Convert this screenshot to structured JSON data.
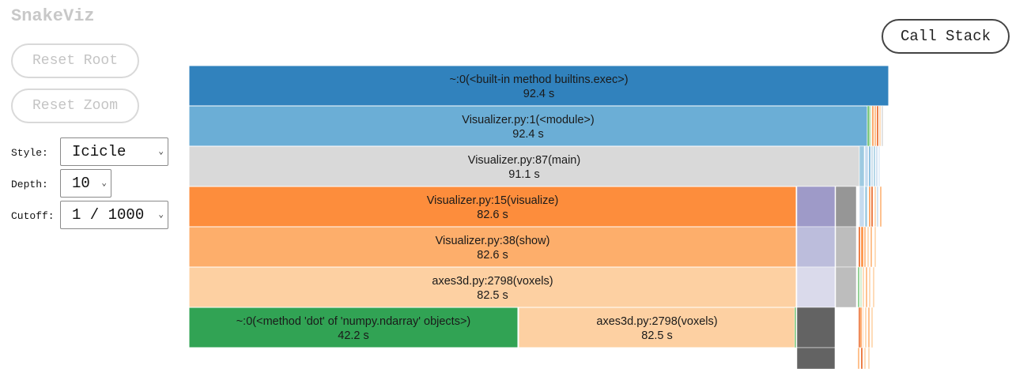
{
  "app": {
    "title": "SnakeViz"
  },
  "controls": {
    "reset_root": "Reset Root",
    "reset_zoom": "Reset Zoom",
    "call_stack": "Call Stack",
    "style_label": "Style:",
    "style_value": "Icicle",
    "depth_label": "Depth:",
    "depth_value": "10",
    "cutoff_label": "Cutoff:",
    "cutoff_value": "1 / 1000"
  },
  "icicle": {
    "blocks": [
      {
        "name": "~:0(<built-in method builtins.exec>)",
        "time": "92.4 s",
        "color": "#3182bd"
      },
      {
        "name": "Visualizer.py:1(<module>)",
        "time": "92.4 s",
        "color": "#6baed6"
      },
      {
        "name": "Visualizer.py:87(main)",
        "time": "91.1 s",
        "color": "#d9d9d9"
      },
      {
        "name": "Visualizer.py:15(visualize)",
        "time": "82.6 s",
        "color": "#fd8d3c"
      },
      {
        "name": "Visualizer.py:38(show)",
        "time": "82.6 s",
        "color": "#fdae6b"
      },
      {
        "name": "axes3d.py:2798(voxels)",
        "time": "82.5 s",
        "color": "#fdd0a2"
      },
      {
        "name": "~:0(<method 'dot' of 'numpy.ndarray' objects>)",
        "time": "42.2 s",
        "color": "#31a354"
      },
      {
        "name": "axes3d.py:2798(voxels)",
        "time": "82.5 s",
        "color": "#fdd0a2"
      }
    ]
  }
}
